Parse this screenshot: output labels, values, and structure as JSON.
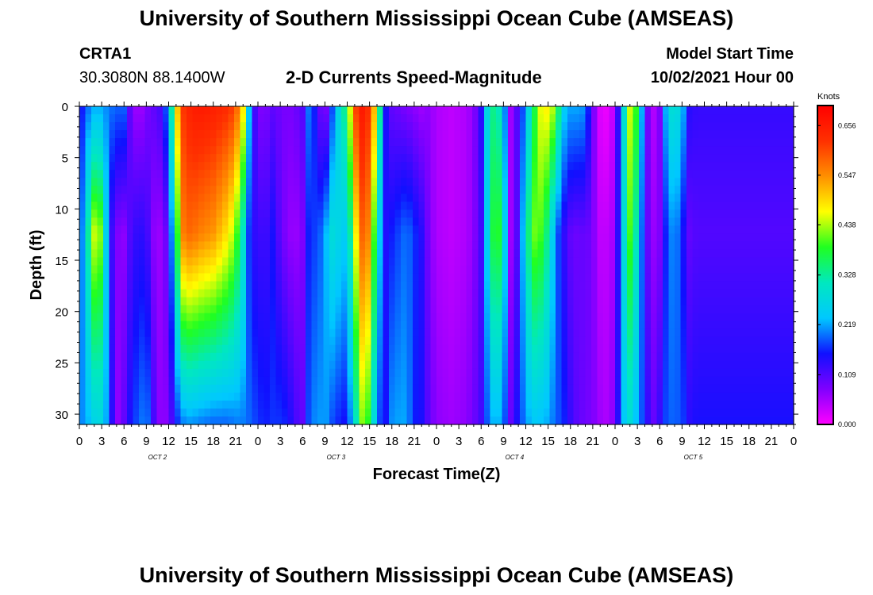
{
  "header": {
    "title": "University of Southern Mississippi Ocean Cube (AMSEAS)",
    "station": "CRTA1",
    "coords": "30.3080N  88.1400W",
    "chart_title": "2-D Currents Speed-Magnitude",
    "model_start_label": "Model Start Time",
    "model_start_value": "10/02/2021 Hour 00"
  },
  "footer": {
    "title": "University of Southern Mississippi Ocean Cube (AMSEAS)"
  },
  "chart_data": {
    "type": "heatmap",
    "title": "2-D Currents Speed-Magnitude",
    "xlabel": "Forecast Time(Z)",
    "ylabel": "Depth (ft)",
    "x_hours": [
      0,
      96
    ],
    "x_tick_step_hours": 3,
    "xtick_labels": [
      "0",
      "3",
      "6",
      "9",
      "12",
      "15",
      "18",
      "21",
      "0",
      "3",
      "6",
      "9",
      "12",
      "15",
      "18",
      "21",
      "0",
      "3",
      "6",
      "9",
      "12",
      "15",
      "18",
      "21",
      "0",
      "3",
      "6",
      "9",
      "12",
      "15",
      "18",
      "21",
      "0"
    ],
    "date_labels": [
      {
        "label": "OCT 2",
        "hour": 10.5
      },
      {
        "label": "OCT 3",
        "hour": 34.5
      },
      {
        "label": "OCT 4",
        "hour": 58.5
      },
      {
        "label": "OCT 5",
        "hour": 82.5
      }
    ],
    "ylim": [
      0,
      31
    ],
    "y_ticks": [
      0,
      5,
      10,
      15,
      20,
      25,
      30
    ],
    "colorbar": {
      "unit": "Knots",
      "ticks": [
        "0.656",
        "0.547",
        "0.438",
        "0.328",
        "0.219",
        "0.109",
        "0.000"
      ],
      "min": 0.0,
      "max": 0.7,
      "colors": [
        "#ff00ff",
        "#8000ff",
        "#1010ff",
        "#00c8ff",
        "#00e8c0",
        "#20ff20",
        "#ffff00",
        "#ff9000",
        "#ff3000",
        "#ff0000"
      ]
    },
    "speed_knots": {
      "columns": [
        {
          "hour": 0,
          "top": 0.14,
          "mid": 0.15,
          "bottom": 0.2
        },
        {
          "hour": 1,
          "top": 0.19,
          "mid": 0.3,
          "bottom": 0.22
        },
        {
          "hour": 2,
          "top": 0.22,
          "mid": 0.45,
          "bottom": 0.26
        },
        {
          "hour": 3,
          "top": 0.22,
          "mid": 0.42,
          "bottom": 0.27
        },
        {
          "hour": 4,
          "top": 0.2,
          "mid": 0.15,
          "bottom": 0.19
        },
        {
          "hour": 5,
          "top": 0.19,
          "mid": 0.08,
          "bottom": 0.06
        },
        {
          "hour": 6,
          "top": 0.19,
          "mid": 0.07,
          "bottom": 0.1
        },
        {
          "hour": 7,
          "top": 0.08,
          "mid": 0.12,
          "bottom": 0.16
        },
        {
          "hour": 8,
          "top": 0.05,
          "mid": 0.14,
          "bottom": 0.19
        },
        {
          "hour": 9,
          "top": 0.08,
          "mid": 0.13,
          "bottom": 0.21
        },
        {
          "hour": 10,
          "top": 0.1,
          "mid": 0.07,
          "bottom": 0.12
        },
        {
          "hour": 11,
          "top": 0.12,
          "mid": 0.06,
          "bottom": 0.06
        },
        {
          "hour": 12,
          "top": 0.22,
          "mid": 0.11,
          "bottom": 0.08
        },
        {
          "hour": 13,
          "top": 0.48,
          "mid": 0.35,
          "bottom": 0.16
        },
        {
          "hour": 14,
          "top": 0.62,
          "mid": 0.56,
          "bottom": 0.2
        },
        {
          "hour": 15,
          "top": 0.65,
          "mid": 0.58,
          "bottom": 0.21
        },
        {
          "hour": 16,
          "top": 0.66,
          "mid": 0.56,
          "bottom": 0.2
        },
        {
          "hour": 18,
          "top": 0.65,
          "mid": 0.54,
          "bottom": 0.19
        },
        {
          "hour": 20,
          "top": 0.63,
          "mid": 0.48,
          "bottom": 0.19
        },
        {
          "hour": 21,
          "top": 0.6,
          "mid": 0.42,
          "bottom": 0.2
        },
        {
          "hour": 22,
          "top": 0.48,
          "mid": 0.3,
          "bottom": 0.2
        },
        {
          "hour": 23,
          "top": 0.18,
          "mid": 0.14,
          "bottom": 0.19
        },
        {
          "hour": 24,
          "top": 0.08,
          "mid": 0.13,
          "bottom": 0.17
        },
        {
          "hour": 25,
          "top": 0.08,
          "mid": 0.12,
          "bottom": 0.16
        },
        {
          "hour": 26,
          "top": 0.1,
          "mid": 0.15,
          "bottom": 0.17
        },
        {
          "hour": 27,
          "top": 0.09,
          "mid": 0.1,
          "bottom": 0.17
        },
        {
          "hour": 28,
          "top": 0.08,
          "mid": 0.07,
          "bottom": 0.16
        },
        {
          "hour": 29,
          "top": 0.09,
          "mid": 0.06,
          "bottom": 0.12
        },
        {
          "hour": 30,
          "top": 0.11,
          "mid": 0.08,
          "bottom": 0.1
        },
        {
          "hour": 31,
          "top": 0.22,
          "mid": 0.18,
          "bottom": 0.2
        },
        {
          "hour": 32,
          "top": 0.12,
          "mid": 0.17,
          "bottom": 0.21
        },
        {
          "hour": 33,
          "top": 0.06,
          "mid": 0.22,
          "bottom": 0.22
        },
        {
          "hour": 34,
          "top": 0.18,
          "mid": 0.28,
          "bottom": 0.18
        },
        {
          "hour": 35,
          "top": 0.29,
          "mid": 0.26,
          "bottom": 0.16
        },
        {
          "hour": 36,
          "top": 0.36,
          "mid": 0.24,
          "bottom": 0.15
        },
        {
          "hour": 37,
          "top": 0.6,
          "mid": 0.45,
          "bottom": 0.28
        },
        {
          "hour": 38,
          "top": 0.66,
          "mid": 0.58,
          "bottom": 0.42
        },
        {
          "hour": 39,
          "top": 0.62,
          "mid": 0.55,
          "bottom": 0.38
        },
        {
          "hour": 40,
          "top": 0.45,
          "mid": 0.3,
          "bottom": 0.2
        },
        {
          "hour": 41,
          "top": 0.16,
          "mid": 0.14,
          "bottom": 0.14
        },
        {
          "hour": 42,
          "top": 0.1,
          "mid": 0.16,
          "bottom": 0.21
        },
        {
          "hour": 43,
          "top": 0.09,
          "mid": 0.18,
          "bottom": 0.22
        },
        {
          "hour": 44,
          "top": 0.08,
          "mid": 0.2,
          "bottom": 0.22
        },
        {
          "hour": 45,
          "top": 0.07,
          "mid": 0.17,
          "bottom": 0.16
        },
        {
          "hour": 46,
          "top": 0.06,
          "mid": 0.14,
          "bottom": 0.15
        },
        {
          "hour": 47,
          "top": 0.07,
          "mid": 0.08,
          "bottom": 0.1
        },
        {
          "hour": 48,
          "top": 0.05,
          "mid": 0.05,
          "bottom": 0.07
        },
        {
          "hour": 50,
          "top": 0.04,
          "mid": 0.04,
          "bottom": 0.06
        },
        {
          "hour": 52,
          "top": 0.05,
          "mid": 0.05,
          "bottom": 0.07
        },
        {
          "hour": 53,
          "top": 0.07,
          "mid": 0.07,
          "bottom": 0.09
        },
        {
          "hour": 54,
          "top": 0.14,
          "mid": 0.12,
          "bottom": 0.12
        },
        {
          "hour": 55,
          "top": 0.3,
          "mid": 0.28,
          "bottom": 0.2
        },
        {
          "hour": 56,
          "top": 0.36,
          "mid": 0.44,
          "bottom": 0.24
        },
        {
          "hour": 57,
          "top": 0.24,
          "mid": 0.3,
          "bottom": 0.2
        },
        {
          "hour": 58,
          "top": 0.06,
          "mid": 0.06,
          "bottom": 0.1
        },
        {
          "hour": 59,
          "top": 0.12,
          "mid": 0.12,
          "bottom": 0.16
        },
        {
          "hour": 60,
          "top": 0.22,
          "mid": 0.3,
          "bottom": 0.21
        },
        {
          "hour": 61,
          "top": 0.35,
          "mid": 0.42,
          "bottom": 0.24
        },
        {
          "hour": 62,
          "top": 0.46,
          "mid": 0.4,
          "bottom": 0.23
        },
        {
          "hour": 63,
          "top": 0.48,
          "mid": 0.33,
          "bottom": 0.22
        },
        {
          "hour": 64,
          "top": 0.42,
          "mid": 0.2,
          "bottom": 0.19
        },
        {
          "hour": 65,
          "top": 0.25,
          "mid": 0.14,
          "bottom": 0.17
        },
        {
          "hour": 66,
          "top": 0.22,
          "mid": 0.1,
          "bottom": 0.13
        },
        {
          "hour": 67,
          "top": 0.22,
          "mid": 0.09,
          "bottom": 0.1
        },
        {
          "hour": 68,
          "top": 0.21,
          "mid": 0.1,
          "bottom": 0.09
        },
        {
          "hour": 69,
          "top": 0.09,
          "mid": 0.08,
          "bottom": 0.08
        },
        {
          "hour": 70,
          "top": 0.02,
          "mid": 0.04,
          "bottom": 0.06
        },
        {
          "hour": 71,
          "top": 0.01,
          "mid": 0.04,
          "bottom": 0.05
        },
        {
          "hour": 72,
          "top": 0.05,
          "mid": 0.06,
          "bottom": 0.08
        },
        {
          "hour": 73,
          "top": 0.25,
          "mid": 0.25,
          "bottom": 0.23
        },
        {
          "hour": 74,
          "top": 0.45,
          "mid": 0.4,
          "bottom": 0.28
        },
        {
          "hour": 75,
          "top": 0.38,
          "mid": 0.3,
          "bottom": 0.22
        },
        {
          "hour": 76,
          "top": 0.12,
          "mid": 0.12,
          "bottom": 0.16
        },
        {
          "hour": 77,
          "top": 0.04,
          "mid": 0.06,
          "bottom": 0.09
        },
        {
          "hour": 78,
          "top": 0.08,
          "mid": 0.08,
          "bottom": 0.13
        },
        {
          "hour": 79,
          "top": 0.26,
          "mid": 0.18,
          "bottom": 0.19
        },
        {
          "hour": 80,
          "top": 0.3,
          "mid": 0.22,
          "bottom": 0.19
        },
        {
          "hour": 81,
          "top": 0.24,
          "mid": 0.16,
          "bottom": 0.18
        },
        {
          "hour": 82,
          "top": 0.14,
          "mid": 0.1,
          "bottom": 0.14
        },
        {
          "hour": 83,
          "top": 0.13,
          "mid": 0.11,
          "bottom": 0.15
        }
      ],
      "depth_fraction_of_mid": 0.4
    }
  }
}
